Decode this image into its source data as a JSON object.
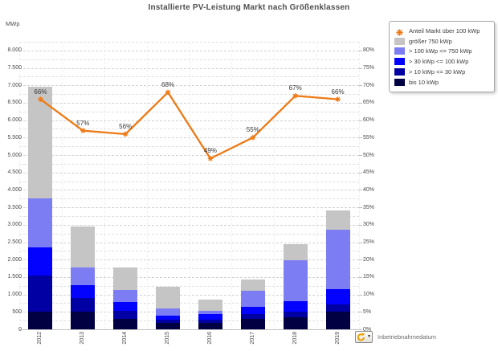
{
  "title": "Installierte PV-Leistung Markt nach Größenklassen",
  "footer": {
    "selector_label": "Inbetriebnahmedatum"
  },
  "colors": {
    "line": "#ED7A16",
    "groesser_750": "#C5C5C5",
    "kwp_100_750": "#7D7DF3",
    "kwp_30_100": "#0202FE",
    "kwp_10_30": "#0000A3",
    "bis_10": "#000042",
    "grid_major": "#D2D2D2",
    "grid_minor": "#E3E3E3",
    "axis_text": "#4A4A4A"
  },
  "chart_data": {
    "type": "bar",
    "subtype": "stacked-bars-with-percentage-line",
    "title": "Installierte PV-Leistung Markt nach Größenklassen",
    "categories": [
      "2012",
      "2013",
      "2014",
      "2015",
      "2016",
      "2017",
      "2018",
      "2019"
    ],
    "series": [
      {
        "name": "bis 10 kWp",
        "color_key": "bis_10",
        "values": [
          510,
          500,
          310,
          175,
          185,
          310,
          350,
          500
        ]
      },
      {
        "name": "> 10 kWp <= 30 kWp",
        "color_key": "kwp_10_30",
        "values": [
          1040,
          400,
          210,
          110,
          100,
          130,
          150,
          210
        ]
      },
      {
        "name": "> 30 kWp <= 100 kWp",
        "color_key": "kwp_30_100",
        "values": [
          800,
          370,
          260,
          105,
          150,
          200,
          300,
          440
        ]
      },
      {
        "name": "> 100 kWp <= 750 kWp",
        "color_key": "kwp_100_750",
        "values": [
          1400,
          510,
          350,
          200,
          100,
          460,
          1180,
          1710
        ]
      },
      {
        "name": "größer 750 kWp",
        "color_key": "groesser_750",
        "values": [
          3200,
          1170,
          640,
          630,
          320,
          320,
          460,
          540
        ]
      }
    ],
    "totals_mwp": [
      6950,
      2950,
      1770,
      1220,
      855,
      1420,
      2440,
      3400
    ],
    "line_series": {
      "name": "Anteil Markt über 100 kWp",
      "axis": "right",
      "values_percent": [
        66,
        57,
        56,
        68,
        49,
        55,
        67,
        66
      ],
      "point_labels": [
        "66%",
        "57%",
        "56%",
        "68%",
        "49%",
        "55%",
        "67%",
        "66%"
      ]
    },
    "left_axis": {
      "label": "MWp",
      "min": 0,
      "max": 8250,
      "major_step": 500,
      "minor_step": 250,
      "tick_labels": [
        "0",
        "500",
        "1.000",
        "1.500",
        "2.000",
        "2.500",
        "3.000",
        "3.500",
        "4.000",
        "4.500",
        "5.000",
        "5.500",
        "6.000",
        "6.500",
        "7.000",
        "7.500",
        "8.000"
      ]
    },
    "right_axis": {
      "min": 0,
      "max": 82.5,
      "major_step": 5,
      "tick_labels": [
        "0%",
        "5%",
        "10%",
        "15%",
        "20%",
        "25%",
        "30%",
        "35%",
        "40%",
        "45%",
        "50%",
        "55%",
        "60%",
        "65%",
        "70%",
        "75%",
        "80%"
      ]
    },
    "legend": {
      "position": "top-right",
      "entries": [
        {
          "marker": "asterisk-line",
          "color_key": "line",
          "label": "Anteil Markt über 100 kWp"
        },
        {
          "marker": "swatch",
          "color_key": "groesser_750",
          "label": "größer 750 kWp"
        },
        {
          "marker": "swatch",
          "color_key": "kwp_100_750",
          "label": "> 100 kWp <= 750 kWp"
        },
        {
          "marker": "swatch",
          "color_key": "kwp_30_100",
          "label": "> 30 kWp <= 100 kWp"
        },
        {
          "marker": "swatch",
          "color_key": "kwp_10_30",
          "label": "> 10 kWp <= 30 kWp"
        },
        {
          "marker": "swatch",
          "color_key": "bis_10",
          "label": "bis 10 kWp"
        }
      ]
    },
    "grid": "horizontal dashed minor (250 MWp) and major (500 MWp) lines, faint vertical category separators"
  }
}
